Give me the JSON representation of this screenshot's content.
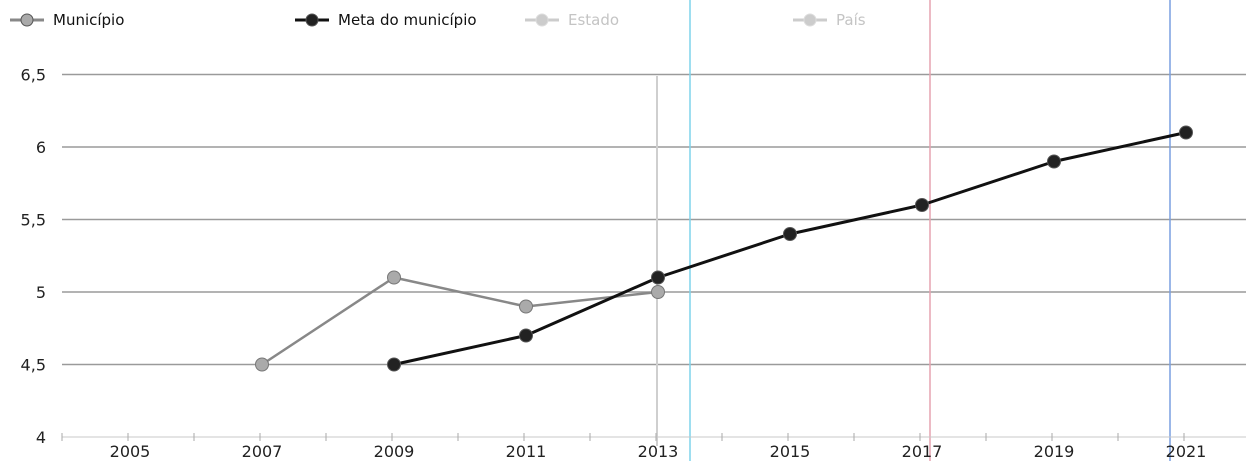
{
  "chart_data": {
    "type": "line",
    "title": "",
    "xlabel": "",
    "ylabel": "",
    "legend_position": "top-left",
    "grid": true,
    "categories": [
      "2005",
      "2007",
      "2009",
      "2011",
      "2013",
      "2015",
      "2017",
      "2019",
      "2021"
    ],
    "yticks": [
      "4",
      "4,5",
      "5",
      "5,5",
      "6",
      "6,5"
    ],
    "ylim": [
      4,
      6.5
    ],
    "series": [
      {
        "name": "Município",
        "color": "#888888",
        "marker_color": "#aaaaaa",
        "values": [
          null,
          4.5,
          5.1,
          4.9,
          5.0,
          null,
          null,
          null,
          null
        ]
      },
      {
        "name": "Meta do município",
        "color": "#111111",
        "marker_color": "#222222",
        "values": [
          null,
          null,
          4.5,
          4.7,
          5.1,
          5.4,
          5.6,
          5.9,
          6.1
        ]
      },
      {
        "name": "Estado",
        "color": "#cccccc",
        "marker_color": "#cccccc",
        "values": [
          null,
          null,
          null,
          null,
          null,
          null,
          null,
          null,
          null
        ]
      },
      {
        "name": "País",
        "color": "#cccccc",
        "marker_color": "#cccccc",
        "values": [
          null,
          null,
          null,
          null,
          null,
          null,
          null,
          null,
          null
        ]
      }
    ]
  }
}
